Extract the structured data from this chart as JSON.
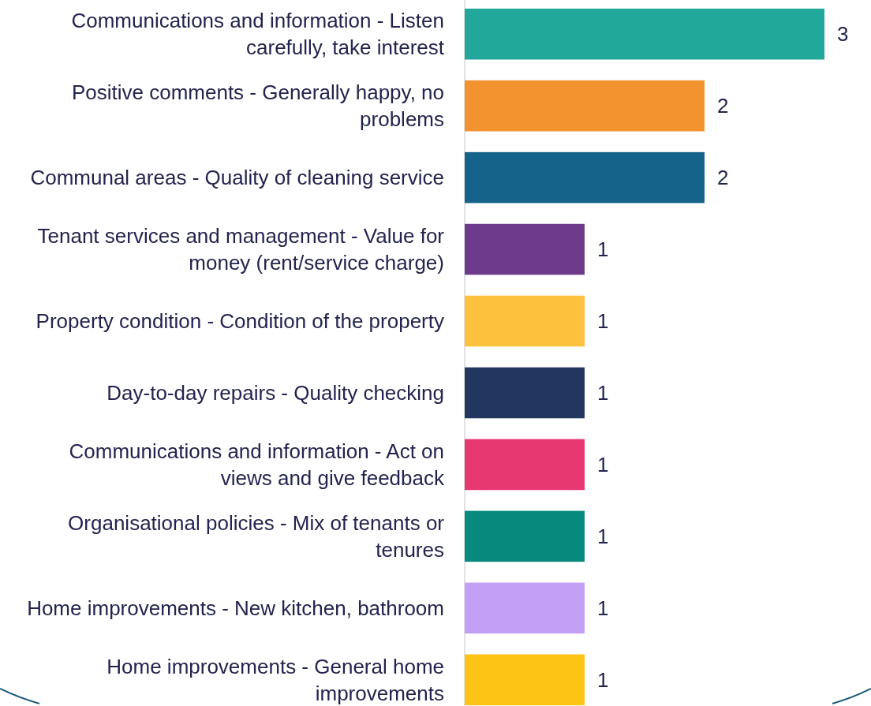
{
  "chart_data": {
    "type": "bar",
    "orientation": "horizontal",
    "data_labels": true,
    "categories": [
      "Communications and information - Listen carefully, take interest",
      "Positive comments - Generally happy, no problems",
      "Communal areas - Quality of cleaning service",
      "Tenant services and management - Value for money (rent/service charge)",
      "Property condition - Condition of the property",
      "Day-to-day repairs - Quality checking",
      "Communications and information - Act on views and give feedback",
      "Organisational policies - Mix of tenants or tenures",
      "Home improvements - New kitchen, bathroom",
      "Home improvements - General home improvements"
    ],
    "values": [
      3,
      2,
      2,
      1,
      1,
      1,
      1,
      1,
      1,
      1
    ],
    "colors": [
      "#22a89a",
      "#f2932f",
      "#15638a",
      "#6e3a8c",
      "#fdc13e",
      "#21375f",
      "#e83872",
      "#078a7d",
      "#c39ff5",
      "#fdc315"
    ]
  }
}
